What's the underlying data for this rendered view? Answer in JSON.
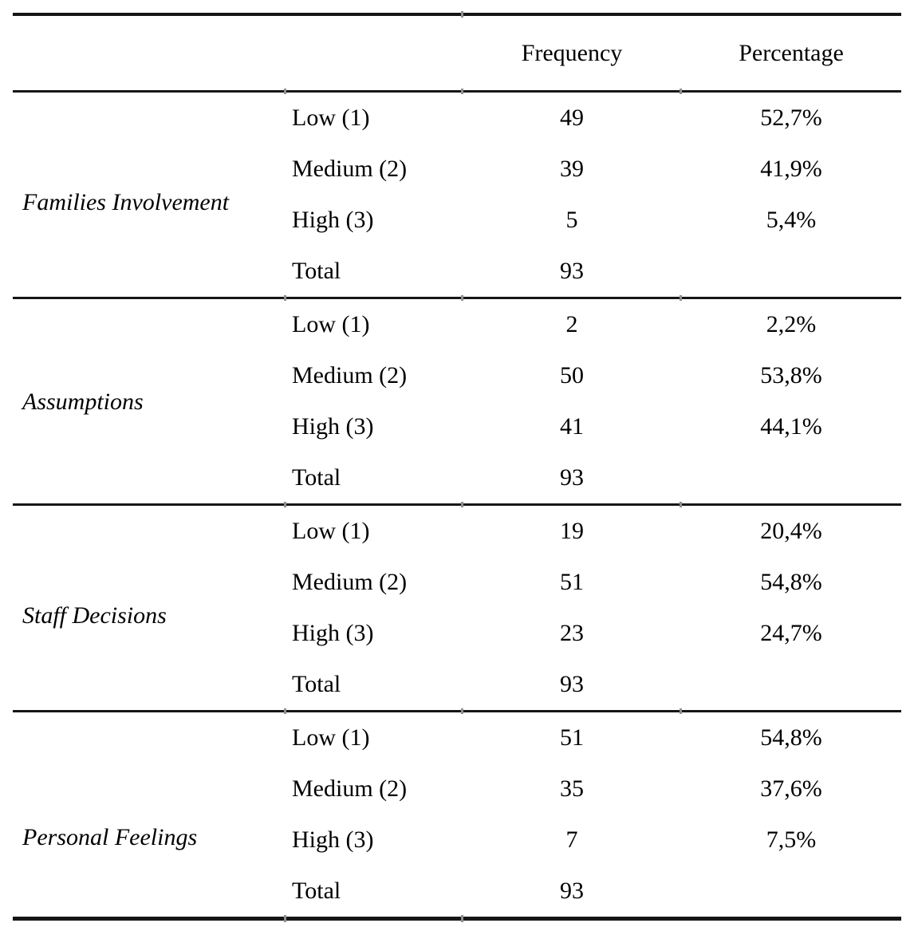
{
  "colors": {
    "background": "#ffffff",
    "text": "#000000",
    "rule": "#161616",
    "divider_tick": "#8f8f8f"
  },
  "table": {
    "header": {
      "frequency": "Frequency",
      "percentage": "Percentage"
    },
    "groups": [
      {
        "label": "Families Involvement",
        "rows": [
          {
            "level": "Low (1)",
            "frequency": "49",
            "percentage": "52,7%"
          },
          {
            "level": "Medium (2)",
            "frequency": "39",
            "percentage": "41,9%"
          },
          {
            "level": "High (3)",
            "frequency": "5",
            "percentage": "5,4%"
          },
          {
            "level": "Total",
            "frequency": "93",
            "percentage": ""
          }
        ]
      },
      {
        "label": "Assumptions",
        "rows": [
          {
            "level": "Low (1)",
            "frequency": "2",
            "percentage": "2,2%"
          },
          {
            "level": "Medium (2)",
            "frequency": "50",
            "percentage": "53,8%"
          },
          {
            "level": "High (3)",
            "frequency": "41",
            "percentage": "44,1%"
          },
          {
            "level": "Total",
            "frequency": "93",
            "percentage": ""
          }
        ]
      },
      {
        "label": "Staff Decisions",
        "rows": [
          {
            "level": "Low (1)",
            "frequency": "19",
            "percentage": "20,4%"
          },
          {
            "level": "Medium (2)",
            "frequency": "51",
            "percentage": "54,8%"
          },
          {
            "level": "High (3)",
            "frequency": "23",
            "percentage": "24,7%"
          },
          {
            "level": "Total",
            "frequency": "93",
            "percentage": ""
          }
        ]
      },
      {
        "label": "Personal Feelings",
        "rows": [
          {
            "level": "Low (1)",
            "frequency": "51",
            "percentage": "54,8%"
          },
          {
            "level": "Medium (2)",
            "frequency": "35",
            "percentage": "37,6%"
          },
          {
            "level": "High (3)",
            "frequency": "7",
            "percentage": "7,5%"
          },
          {
            "level": "Total",
            "frequency": "93",
            "percentage": ""
          }
        ]
      }
    ]
  }
}
